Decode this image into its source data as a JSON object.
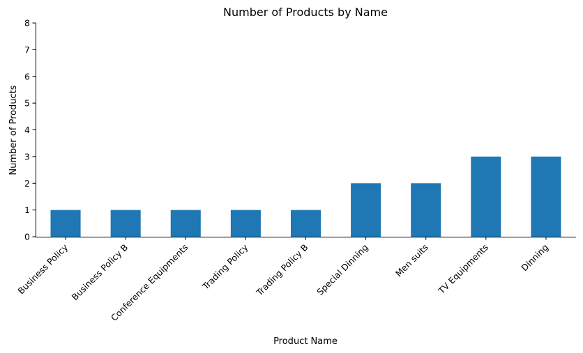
{
  "chart_data": {
    "type": "bar",
    "title": "Number of Products by Name",
    "xlabel": "Product Name",
    "ylabel": "Number of Products",
    "categories": [
      "Business Policy",
      "Business Policy B",
      "Conference Equipments",
      "Trading Policy",
      "Trading Policy B",
      "Special Dinning",
      "Men suits",
      "TV Equipments",
      "Dinning"
    ],
    "values": [
      1,
      1,
      1,
      1,
      1,
      2,
      2,
      3,
      3
    ],
    "ylim": [
      0,
      8
    ],
    "yticks": [
      0,
      1,
      2,
      3,
      4,
      5,
      6,
      7,
      8
    ],
    "grid": false,
    "legend": "none",
    "bar_color": "#1f77b4"
  }
}
